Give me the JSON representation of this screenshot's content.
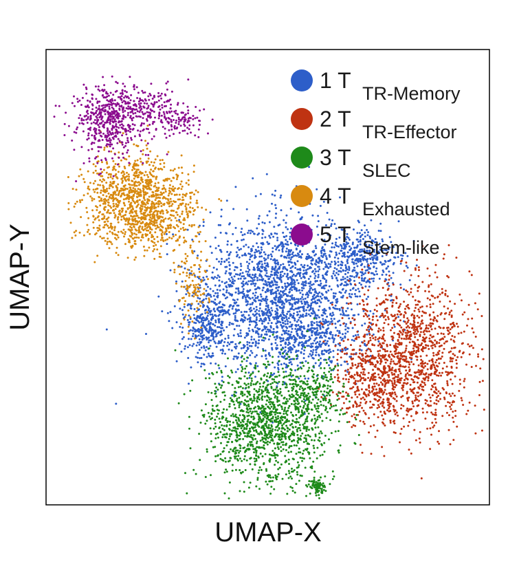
{
  "chart_data": {
    "type": "scatter",
    "title": "",
    "xlabel": "UMAP-X",
    "ylabel": "UMAP-Y",
    "xlim": [
      0,
      100
    ],
    "ylim": [
      0,
      100
    ],
    "grid": false,
    "ticks": "none",
    "legend_position": "top-right",
    "point_counts_estimate": {
      "1": 2900,
      "2": 1500,
      "3": 1550,
      "4": 1350,
      "5": 750
    },
    "clusters": [
      {
        "id": "1",
        "prefix": "1 T",
        "subscript": "TR-Memory",
        "color": "#2d5ec9",
        "regions": [
          {
            "cx": 53,
            "cy": 46,
            "sx": 9.5,
            "sy": 8.5,
            "weight": 0.7
          },
          {
            "cx": 71,
            "cy": 54,
            "sx": 4.5,
            "sy": 3,
            "weight": 0.12
          },
          {
            "cx": 36,
            "cy": 40,
            "sx": 2.5,
            "sy": 4,
            "weight": 0.1
          },
          {
            "cx": 60,
            "cy": 36,
            "sx": 6,
            "sy": 3,
            "weight": 0.08
          }
        ]
      },
      {
        "id": "2",
        "prefix": "2 T",
        "subscript": "TR-Effector",
        "color": "#bf3312",
        "regions": [
          {
            "cx": 82,
            "cy": 33,
            "sx": 7,
            "sy": 8,
            "weight": 0.85
          },
          {
            "cx": 72,
            "cy": 27,
            "sx": 3.5,
            "sy": 4,
            "weight": 0.15
          }
        ]
      },
      {
        "id": "3",
        "prefix": "3 T",
        "subscript": "SLEC",
        "color": "#1e8a1a",
        "regions": [
          {
            "cx": 50,
            "cy": 18,
            "sx": 7,
            "sy": 6.5,
            "weight": 0.85
          },
          {
            "cx": 60,
            "cy": 25,
            "sx": 3.5,
            "sy": 3,
            "weight": 0.1
          },
          {
            "cx": 61,
            "cy": 4,
            "sx": 0.8,
            "sy": 1,
            "weight": 0.05
          }
        ]
      },
      {
        "id": "4",
        "prefix": "4 T",
        "subscript": "Exhausted",
        "color": "#d88a10",
        "regions": [
          {
            "cx": 19,
            "cy": 67,
            "sx": 5.5,
            "sy": 5,
            "weight": 0.7
          },
          {
            "cx": 27,
            "cy": 64,
            "sx": 4,
            "sy": 4,
            "weight": 0.22
          },
          {
            "cx": 33,
            "cy": 48,
            "sx": 2,
            "sy": 4,
            "weight": 0.08
          }
        ]
      },
      {
        "id": "5",
        "prefix": "5 T",
        "subscript": "Stem-like",
        "color": "#8b0c8e",
        "regions": [
          {
            "cx": 14,
            "cy": 84,
            "sx": 4,
            "sy": 4,
            "weight": 0.6
          },
          {
            "cx": 22,
            "cy": 87,
            "sx": 5,
            "sy": 2.5,
            "weight": 0.3
          },
          {
            "cx": 30,
            "cy": 84,
            "sx": 2.5,
            "sy": 1.5,
            "weight": 0.1
          }
        ]
      }
    ]
  }
}
